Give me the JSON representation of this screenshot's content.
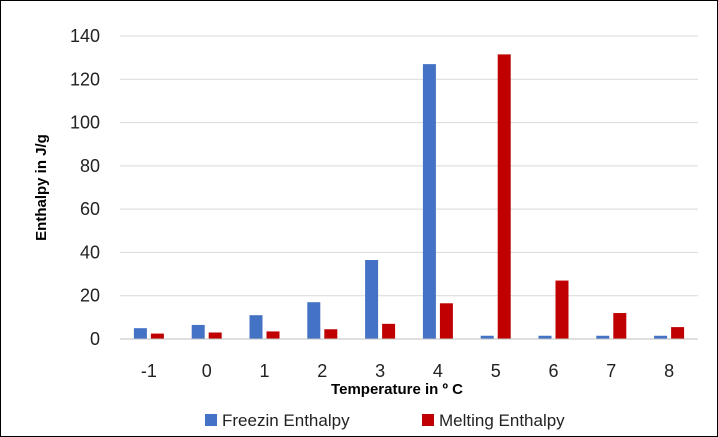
{
  "chart_data": {
    "type": "bar",
    "title": "",
    "xlabel": "Temperature in º C",
    "ylabel": "Enthalpy in J/g",
    "categories": [
      "-1",
      "0",
      "1",
      "2",
      "3",
      "4",
      "5",
      "6",
      "7",
      "8"
    ],
    "series": [
      {
        "name": "Freezin Enthalpy",
        "color": "#4472C4",
        "values": [
          5,
          6.5,
          11,
          17,
          36.5,
          127,
          1.5,
          1.5,
          1.5,
          1.5
        ]
      },
      {
        "name": "Melting Enthalpy",
        "color": "#C00000",
        "values": [
          2.5,
          3,
          3.5,
          4.5,
          7,
          16.5,
          131.5,
          27,
          12,
          5.5
        ]
      }
    ],
    "ylim": [
      0,
      140
    ],
    "yticks": [
      0,
      20,
      40,
      60,
      80,
      100,
      120,
      140
    ],
    "grid": true,
    "legend_position": "bottom"
  }
}
